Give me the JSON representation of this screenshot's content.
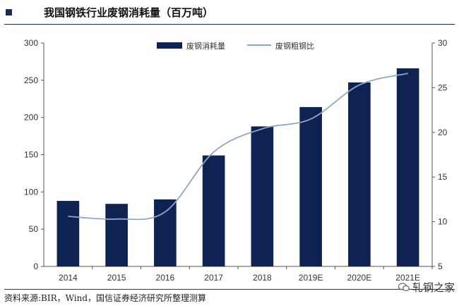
{
  "header": {
    "title": "我国钢铁行业废钢消耗量（百万吨）"
  },
  "footer": {
    "source": "资料来源:BIR，Wind，国信证券经济研究所整理测算",
    "watermark": "轧钢之家"
  },
  "colors": {
    "bar": "#0e2352",
    "line": "#8fa6c6",
    "axis": "#555555"
  },
  "chart_data": {
    "type": "bar",
    "title": "我国钢铁行业废钢消耗量（百万吨）",
    "categories": [
      "2014",
      "2015",
      "2016",
      "2017",
      "2018",
      "2019E",
      "2020E",
      "2021E"
    ],
    "ylim": [
      0,
      300
    ],
    "y2lim": [
      5,
      30
    ],
    "yticks": [
      "0",
      "50",
      "100",
      "150",
      "200",
      "250",
      "300"
    ],
    "y2ticks": [
      "5",
      "10",
      "15",
      "20",
      "25",
      "30"
    ],
    "legend_position": "top",
    "series": [
      {
        "name": "废钢消耗量",
        "type": "bar",
        "axis": "left",
        "values": [
          88,
          84,
          90,
          149,
          188,
          214,
          247,
          266
        ]
      },
      {
        "name": "废钢粗钢比",
        "type": "line",
        "axis": "right",
        "values": [
          10.6,
          10.3,
          11.1,
          17.8,
          20.4,
          21.5,
          25.3,
          26.6
        ]
      }
    ]
  }
}
